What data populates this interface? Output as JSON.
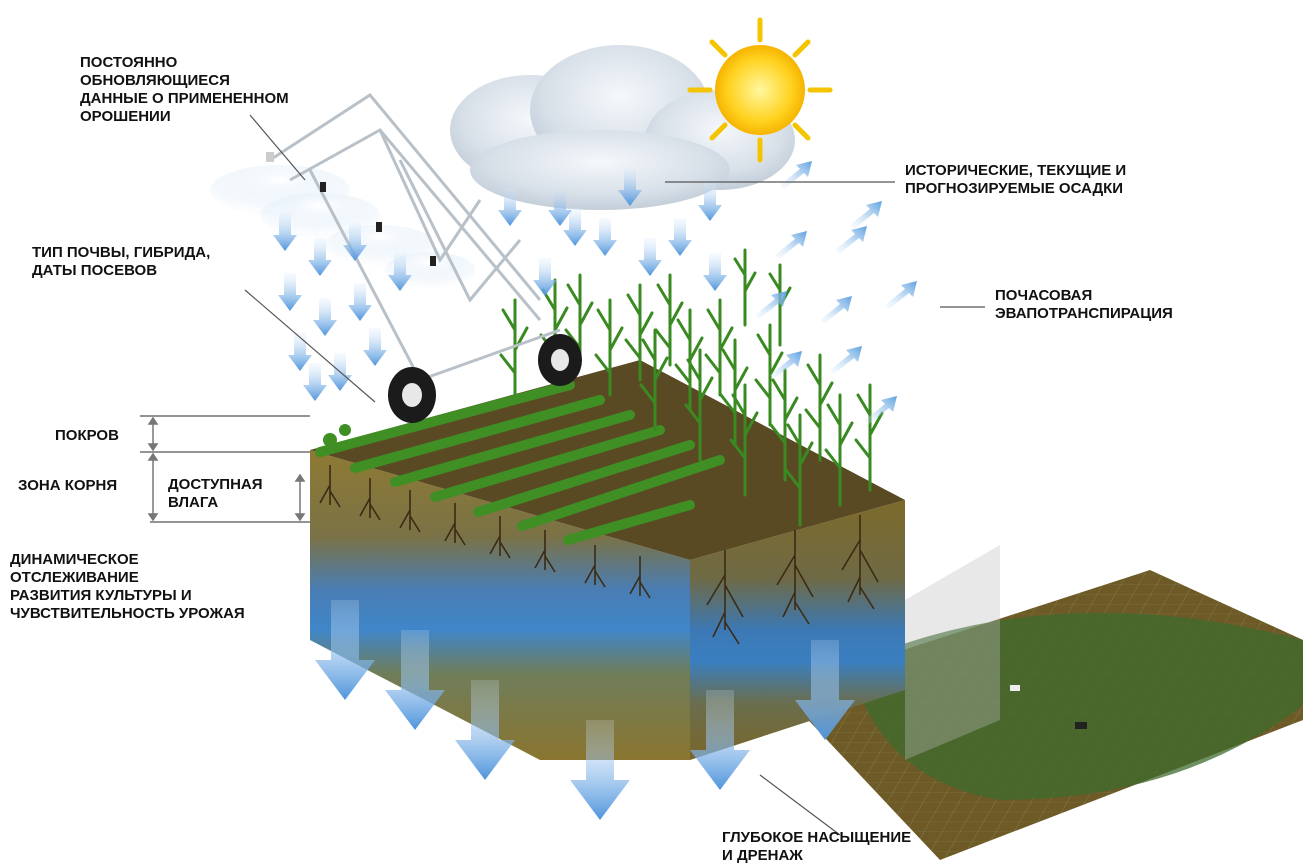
{
  "colors": {
    "soil": "#8a7530",
    "soil_dark": "#5e4f22",
    "soil_top": "#5a4a24",
    "water": "#3f86c9",
    "arrow": "#5c9fe0",
    "plant": "#3c8a23",
    "field_green": "#3e6b2e",
    "field_brown": "#6d5a26",
    "sun": "#ffd21f",
    "label_line": "#555555"
  },
  "labels": {
    "irrigation": "ПОСТОЯННО\nОБНОВЛЯЮЩИЕСЯ\nДАННЫЕ О ПРИМЕНЕННОМ\nОРОШЕНИИ",
    "precipitation": "ИСТОРИЧЕСКИЕ, ТЕКУЩИЕ И\nПРОГНОЗИРУЕМЫЕ ОСАДКИ",
    "soil_type": "ТИП ПОЧВЫ, ГИБРИДА,\nДАТЫ ПОСЕВОВ",
    "evapotranspiration": "ПОЧАСОВАЯ\nЭВАПОТРАНСПИРАЦИЯ",
    "cover": "ПОКРОВ",
    "root_zone": "ЗОНА КОРНЯ",
    "available_moisture": "ДОСТУПНАЯ\nВЛАГА",
    "crop_tracking": "ДИНАМИЧЕСКОЕ\nОТСЛЕЖИВАНИЕ\nРАЗВИТИЯ КУЛЬТУРЫ И\nЧУВСТВИТЕЛЬНОСТЬ УРОЖАЯ",
    "drainage": "ГЛУБОКОЕ НАСЫЩЕНИЕ\nИ ДРЕНАЖ"
  },
  "icons": [
    "sun-icon",
    "cloud-icon",
    "center-pivot-irrigation-icon",
    "corn-plant-icon",
    "soybean-row-icon",
    "water-arrow-icon",
    "field-map-icon"
  ]
}
